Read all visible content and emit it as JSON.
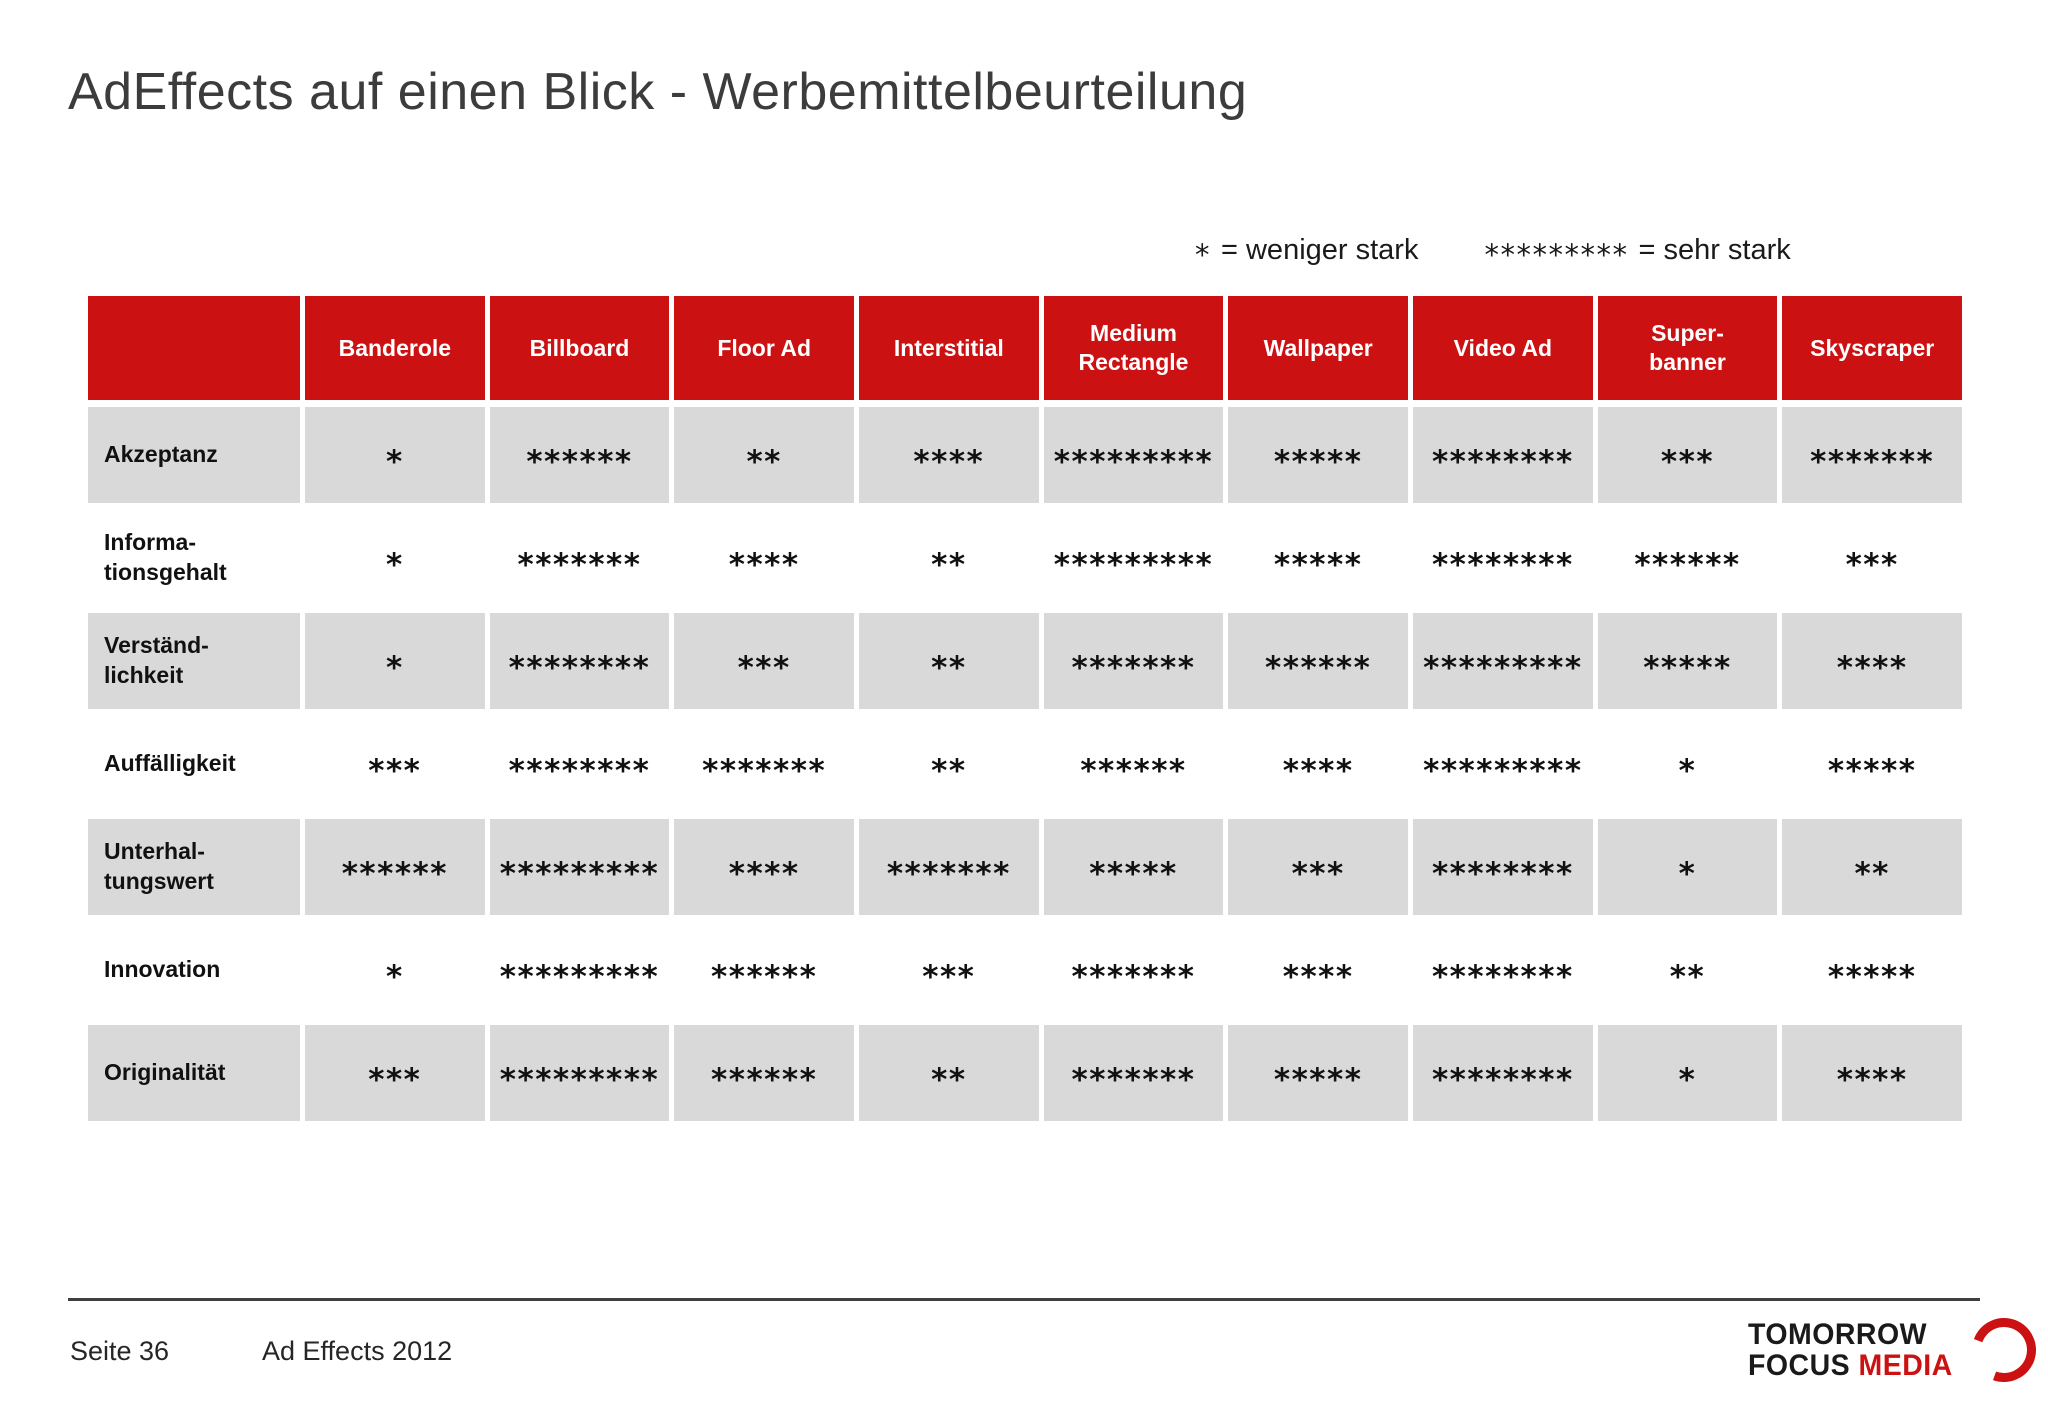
{
  "slide": {
    "title": "AdEffects auf einen Blick - Werbemittelbeurteilung",
    "legend": {
      "weak_symbol": "*",
      "weak_label": "= weniger stark",
      "strong_symbol": "*********",
      "strong_label": "= sehr stark"
    },
    "table": {
      "header": [
        "",
        "Banderole",
        "Billboard",
        "Floor Ad",
        "Interstitial",
        "Medium\nRectangle",
        "Wallpaper",
        "Video Ad",
        "Super-\nbanner",
        "Skyscraper"
      ],
      "rows": [
        {
          "label": "Akzeptanz",
          "shaded": true,
          "values": [
            "*",
            "******",
            "**",
            "****",
            "*********",
            "*****",
            "********",
            "***",
            "*******"
          ]
        },
        {
          "label": "Informa-\ntionsgehalt",
          "shaded": false,
          "values": [
            "*",
            "*******",
            "****",
            "**",
            "*********",
            "*****",
            "********",
            "******",
            "***"
          ]
        },
        {
          "label": "Verständ-\nlichkeit",
          "shaded": true,
          "values": [
            "*",
            "********",
            "***",
            "**",
            "*******",
            "******",
            "*********",
            "*****",
            "****"
          ]
        },
        {
          "label": "Auffälligkeit",
          "shaded": false,
          "values": [
            "***",
            "********",
            "*******",
            "**",
            "******",
            "****",
            "*********",
            "*",
            "*****"
          ]
        },
        {
          "label": "Unterhal-\ntungswert",
          "shaded": true,
          "values": [
            "******",
            "*********",
            "****",
            "*******",
            "*****",
            "***",
            "********",
            "*",
            "**"
          ]
        },
        {
          "label": "Innovation",
          "shaded": false,
          "values": [
            "*",
            "*********",
            "******",
            "***",
            "*******",
            "****",
            "********",
            "**",
            "*****"
          ]
        },
        {
          "label": "Originalität",
          "shaded": true,
          "values": [
            "***",
            "*********",
            "******",
            "**",
            "*******",
            "*****",
            "********",
            "*",
            "****"
          ]
        }
      ]
    },
    "footer": {
      "page": "Seite 36",
      "source": "Ad Effects 2012",
      "logo_line1": "TOMORROW",
      "logo_line2_black": "FOCUS",
      "logo_line2_red": "MEDIA"
    },
    "colors": {
      "header_red": "#cc1112",
      "row_gray": "#d9d9d9",
      "logo_red": "#cc1112",
      "title_gray": "#3c3c3c"
    }
  }
}
